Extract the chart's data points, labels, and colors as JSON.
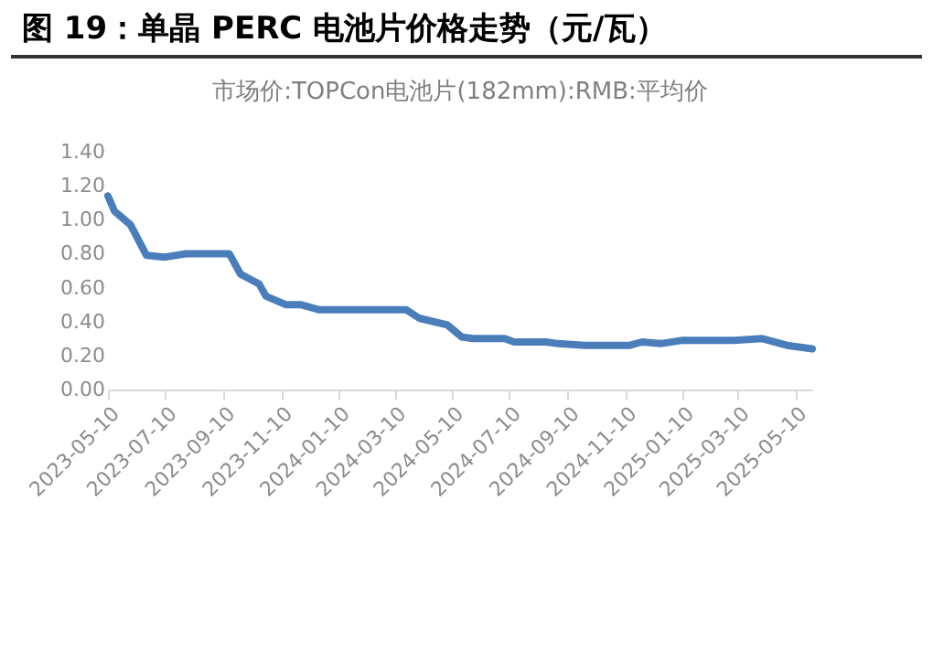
{
  "chart_data": {
    "type": "line",
    "title": "图 19：单晶 PERC 电池片价格走势（元/瓦）",
    "subtitle": "市场价:TOPCon电池片(182mm):RMB:平均价",
    "x": [
      "2023-05-10",
      "2023-05-17",
      "2023-06-03",
      "2023-06-20",
      "2023-07-10",
      "2023-08-01",
      "2023-09-16",
      "2023-09-28",
      "2023-10-18",
      "2023-10-25",
      "2023-11-15",
      "2023-12-01",
      "2023-12-20",
      "2024-03-22",
      "2024-04-05",
      "2024-05-05",
      "2024-05-20",
      "2024-06-01",
      "2024-07-05",
      "2024-07-15",
      "2024-08-18",
      "2024-08-31",
      "2024-09-28",
      "2024-11-15",
      "2024-11-28",
      "2024-12-18",
      "2025-01-10",
      "2025-03-06",
      "2025-04-05",
      "2025-05-01",
      "2025-05-28"
    ],
    "series": [
      {
        "color": "#4a7ebb",
        "values": [
          1.14,
          1.05,
          0.97,
          0.79,
          0.78,
          0.8,
          0.8,
          0.68,
          0.62,
          0.55,
          0.5,
          0.5,
          0.47,
          0.47,
          0.42,
          0.38,
          0.31,
          0.3,
          0.3,
          0.28,
          0.28,
          0.27,
          0.26,
          0.26,
          0.28,
          0.27,
          0.29,
          0.29,
          0.3,
          0.26,
          0.24
        ]
      }
    ],
    "xlim": [
      "2023-05-10",
      "2025-05-28"
    ],
    "xticks": [
      "2023-05-10",
      "2023-07-10",
      "2023-09-10",
      "2023-11-10",
      "2024-01-10",
      "2024-03-10",
      "2024-05-10",
      "2024-07-10",
      "2024-09-10",
      "2024-11-10",
      "2025-01-10",
      "2025-03-10",
      "2025-05-10"
    ],
    "ylim": [
      0,
      1.4
    ],
    "yticks": [
      {
        "value": 0,
        "label": "0.00"
      },
      {
        "value": 0.2,
        "label": "0.20"
      },
      {
        "value": 0.4,
        "label": "0.40"
      },
      {
        "value": 0.6,
        "label": "0.60"
      },
      {
        "value": 0.8,
        "label": "0.80"
      },
      {
        "value": 1.0,
        "label": "1.00"
      },
      {
        "value": 1.2,
        "label": "1.20"
      },
      {
        "value": 1.4,
        "label": "1.40"
      }
    ],
    "grid": false,
    "marker": "none",
    "line_style": "solid"
  }
}
